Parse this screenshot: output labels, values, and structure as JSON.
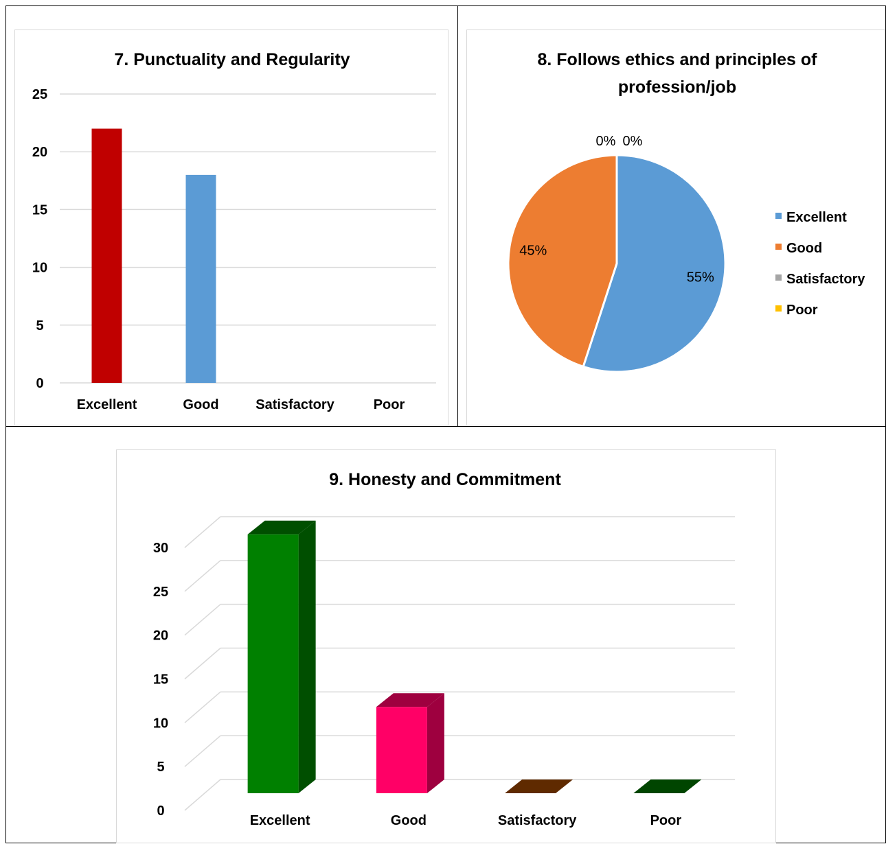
{
  "chart_data": [
    {
      "type": "bar",
      "title": "7. Punctuality and Regularity",
      "categories": [
        "Excellent",
        "Good",
        "Satisfactory",
        "Poor"
      ],
      "values": [
        22,
        18,
        0,
        0
      ],
      "colors": [
        "#c00000",
        "#5b9bd5",
        "#a5a5a5",
        "#ffc000"
      ],
      "ylim": [
        0,
        25
      ],
      "yticks": [
        0,
        5,
        10,
        15,
        20,
        25
      ],
      "grid": true,
      "legend": "none"
    },
    {
      "type": "pie",
      "title_lines": [
        "8. Follows ethics and principles of",
        "profession/job"
      ],
      "categories": [
        "Excellent",
        "Good",
        "Satisfactory",
        "Poor"
      ],
      "values": [
        55,
        45,
        0,
        0
      ],
      "labels": [
        "55%",
        "45%",
        "0%",
        "0%"
      ],
      "colors": [
        "#5b9bd5",
        "#ed7d31",
        "#a5a5a5",
        "#ffc000"
      ],
      "legend": "right"
    },
    {
      "type": "bar",
      "title": "9. Honesty and Commitment",
      "style": "3d",
      "categories": [
        "Excellent",
        "Good",
        "Satisfactory",
        "Poor"
      ],
      "values": [
        30,
        10,
        0,
        0
      ],
      "colors": [
        "#008000",
        "#ff0066",
        "#994400",
        "#007000"
      ],
      "ylim": [
        0,
        30
      ],
      "yticks": [
        0,
        5,
        10,
        15,
        20,
        25,
        30
      ],
      "grid": true,
      "legend": "none"
    }
  ]
}
